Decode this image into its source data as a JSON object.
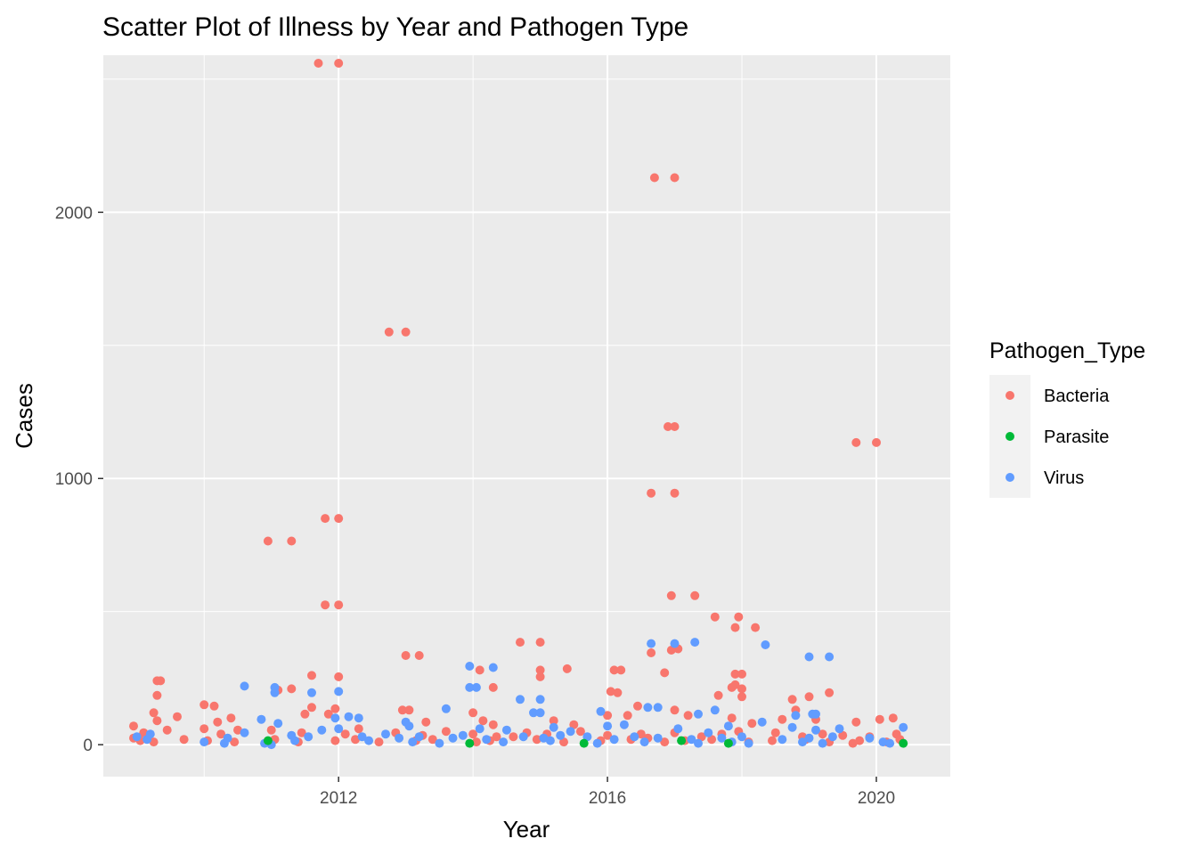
{
  "chart_data": {
    "type": "scatter",
    "title": "Scatter Plot of Illness by Year and Pathogen Type",
    "xlabel": "Year",
    "ylabel": "Cases",
    "xlim": [
      2008.5,
      2021.1
    ],
    "ylim": [
      -120,
      2590
    ],
    "x_ticks": [
      2012,
      2016,
      2020
    ],
    "y_ticks": [
      0,
      1000,
      2000
    ],
    "grid": true,
    "legend": {
      "title": "Pathogen_Type",
      "placement": "right"
    },
    "colors": {
      "Bacteria": "#F8766D",
      "Parasite": "#00BA38",
      "Virus": "#619CFF"
    },
    "panel_background": "#EBEBEB",
    "series": [
      {
        "name": "Bacteria",
        "points": [
          [
            2011.7,
            2560
          ],
          [
            2012.0,
            2560
          ],
          [
            2016.7,
            2130
          ],
          [
            2017.0,
            2130
          ],
          [
            2012.75,
            1550
          ],
          [
            2013.0,
            1550
          ],
          [
            2016.9,
            1195
          ],
          [
            2017.0,
            1195
          ],
          [
            2019.7,
            1135
          ],
          [
            2020.0,
            1135
          ],
          [
            2016.65,
            945
          ],
          [
            2017.0,
            945
          ],
          [
            2011.8,
            850
          ],
          [
            2012.0,
            850
          ],
          [
            2010.95,
            765
          ],
          [
            2011.3,
            765
          ],
          [
            2016.95,
            560
          ],
          [
            2017.3,
            560
          ],
          [
            2011.8,
            525
          ],
          [
            2012.0,
            525
          ],
          [
            2017.6,
            480
          ],
          [
            2017.95,
            480
          ],
          [
            2018.2,
            440
          ],
          [
            2017.9,
            440
          ],
          [
            2014.7,
            385
          ],
          [
            2015.0,
            385
          ],
          [
            2016.65,
            345
          ],
          [
            2016.95,
            355
          ],
          [
            2017.05,
            360
          ],
          [
            2013.0,
            335
          ],
          [
            2013.2,
            335
          ],
          [
            2014.1,
            280
          ],
          [
            2015.0,
            280
          ],
          [
            2015.4,
            285
          ],
          [
            2016.1,
            280
          ],
          [
            2016.2,
            280
          ],
          [
            2015.0,
            255
          ],
          [
            2016.85,
            270
          ],
          [
            2018.0,
            265
          ],
          [
            2017.9,
            265
          ],
          [
            2011.6,
            260
          ],
          [
            2012.0,
            255
          ],
          [
            2009.3,
            240
          ],
          [
            2009.35,
            240
          ],
          [
            2017.9,
            225
          ],
          [
            2017.85,
            215
          ],
          [
            2018.0,
            210
          ],
          [
            2014.3,
            215
          ],
          [
            2016.05,
            200
          ],
          [
            2016.15,
            195
          ],
          [
            2019.3,
            195
          ],
          [
            2011.1,
            205
          ],
          [
            2011.3,
            210
          ],
          [
            2009.3,
            185
          ],
          [
            2017.65,
            185
          ],
          [
            2018.0,
            180
          ],
          [
            2019.0,
            180
          ],
          [
            2018.75,
            170
          ],
          [
            2011.6,
            140
          ],
          [
            2011.95,
            135
          ],
          [
            2010.0,
            150
          ],
          [
            2010.15,
            145
          ],
          [
            2012.95,
            130
          ],
          [
            2013.05,
            130
          ],
          [
            2018.8,
            130
          ],
          [
            2016.45,
            145
          ],
          [
            2017.0,
            130
          ],
          [
            2009.25,
            120
          ],
          [
            2009.3,
            90
          ],
          [
            2009.6,
            105
          ],
          [
            2010.2,
            85
          ],
          [
            2010.4,
            100
          ],
          [
            2011.5,
            115
          ],
          [
            2011.85,
            115
          ],
          [
            2013.3,
            85
          ],
          [
            2014.0,
            120
          ],
          [
            2014.15,
            90
          ],
          [
            2014.3,
            75
          ],
          [
            2015.2,
            90
          ],
          [
            2015.5,
            75
          ],
          [
            2016.0,
            110
          ],
          [
            2016.3,
            110
          ],
          [
            2017.2,
            110
          ],
          [
            2017.85,
            100
          ],
          [
            2018.15,
            80
          ],
          [
            2018.6,
            95
          ],
          [
            2019.1,
            95
          ],
          [
            2019.7,
            85
          ],
          [
            2020.05,
            95
          ],
          [
            2020.25,
            100
          ],
          [
            2008.95,
            70
          ],
          [
            2009.1,
            45
          ],
          [
            2009.45,
            55
          ],
          [
            2010.0,
            60
          ],
          [
            2010.25,
            40
          ],
          [
            2010.5,
            55
          ],
          [
            2011.0,
            55
          ],
          [
            2011.45,
            45
          ],
          [
            2012.1,
            40
          ],
          [
            2012.3,
            60
          ],
          [
            2012.85,
            45
          ],
          [
            2013.25,
            35
          ],
          [
            2013.6,
            50
          ],
          [
            2014.0,
            40
          ],
          [
            2014.35,
            30
          ],
          [
            2014.8,
            45
          ],
          [
            2015.1,
            40
          ],
          [
            2015.6,
            50
          ],
          [
            2016.0,
            35
          ],
          [
            2016.5,
            40
          ],
          [
            2017.0,
            45
          ],
          [
            2017.4,
            30
          ],
          [
            2017.7,
            40
          ],
          [
            2017.95,
            50
          ],
          [
            2018.5,
            45
          ],
          [
            2018.9,
            30
          ],
          [
            2019.2,
            40
          ],
          [
            2019.5,
            35
          ],
          [
            2019.9,
            30
          ],
          [
            2020.3,
            40
          ],
          [
            2008.95,
            25
          ],
          [
            2009.05,
            15
          ],
          [
            2009.25,
            10
          ],
          [
            2009.7,
            20
          ],
          [
            2010.05,
            15
          ],
          [
            2010.45,
            10
          ],
          [
            2011.05,
            20
          ],
          [
            2011.4,
            10
          ],
          [
            2011.95,
            15
          ],
          [
            2012.25,
            20
          ],
          [
            2012.6,
            10
          ],
          [
            2013.15,
            15
          ],
          [
            2013.4,
            20
          ],
          [
            2014.05,
            10
          ],
          [
            2014.25,
            15
          ],
          [
            2014.95,
            20
          ],
          [
            2015.35,
            10
          ],
          [
            2015.9,
            15
          ],
          [
            2016.35,
            20
          ],
          [
            2016.85,
            10
          ],
          [
            2017.15,
            15
          ],
          [
            2017.55,
            20
          ],
          [
            2018.1,
            10
          ],
          [
            2018.45,
            15
          ],
          [
            2018.95,
            20
          ],
          [
            2019.3,
            10
          ],
          [
            2019.75,
            15
          ],
          [
            2020.15,
            10
          ],
          [
            2020.35,
            20
          ],
          [
            2019.65,
            5
          ],
          [
            2016.6,
            25
          ],
          [
            2014.6,
            30
          ]
        ]
      },
      {
        "name": "Virus",
        "points": [
          [
            2017.3,
            385
          ],
          [
            2016.65,
            380
          ],
          [
            2017.0,
            380
          ],
          [
            2018.35,
            375
          ],
          [
            2019.0,
            330
          ],
          [
            2019.3,
            330
          ],
          [
            2013.95,
            295
          ],
          [
            2014.3,
            290
          ],
          [
            2010.6,
            220
          ],
          [
            2011.05,
            215
          ],
          [
            2011.05,
            195
          ],
          [
            2011.6,
            195
          ],
          [
            2012.0,
            200
          ],
          [
            2013.95,
            215
          ],
          [
            2014.05,
            215
          ],
          [
            2014.7,
            170
          ],
          [
            2015.0,
            170
          ],
          [
            2016.6,
            140
          ],
          [
            2016.75,
            140
          ],
          [
            2013.6,
            135
          ],
          [
            2015.9,
            125
          ],
          [
            2017.6,
            130
          ],
          [
            2014.9,
            120
          ],
          [
            2015.0,
            120
          ],
          [
            2019.05,
            115
          ],
          [
            2019.1,
            115
          ],
          [
            2017.35,
            115
          ],
          [
            2018.8,
            110
          ],
          [
            2012.15,
            105
          ],
          [
            2012.3,
            100
          ],
          [
            2011.95,
            100
          ],
          [
            2011.75,
            55
          ],
          [
            2012.0,
            60
          ],
          [
            2010.85,
            95
          ],
          [
            2011.1,
            80
          ],
          [
            2013.0,
            85
          ],
          [
            2013.05,
            70
          ],
          [
            2014.1,
            60
          ],
          [
            2014.5,
            55
          ],
          [
            2015.2,
            65
          ],
          [
            2015.45,
            50
          ],
          [
            2016.0,
            70
          ],
          [
            2016.25,
            75
          ],
          [
            2017.05,
            60
          ],
          [
            2017.8,
            70
          ],
          [
            2018.3,
            85
          ],
          [
            2018.75,
            65
          ],
          [
            2019.1,
            55
          ],
          [
            2019.45,
            60
          ],
          [
            2020.4,
            65
          ],
          [
            2009.2,
            40
          ],
          [
            2009.0,
            30
          ],
          [
            2010.6,
            45
          ],
          [
            2010.35,
            25
          ],
          [
            2011.3,
            35
          ],
          [
            2011.55,
            30
          ],
          [
            2012.35,
            30
          ],
          [
            2012.9,
            25
          ],
          [
            2013.2,
            30
          ],
          [
            2013.7,
            25
          ],
          [
            2013.85,
            35
          ],
          [
            2014.2,
            20
          ],
          [
            2014.75,
            30
          ],
          [
            2015.05,
            25
          ],
          [
            2015.7,
            30
          ],
          [
            2016.1,
            20
          ],
          [
            2016.4,
            30
          ],
          [
            2016.75,
            25
          ],
          [
            2017.25,
            20
          ],
          [
            2017.7,
            25
          ],
          [
            2018.0,
            30
          ],
          [
            2018.6,
            20
          ],
          [
            2019.0,
            25
          ],
          [
            2019.35,
            30
          ],
          [
            2019.9,
            25
          ],
          [
            2010.0,
            10
          ],
          [
            2010.3,
            5
          ],
          [
            2010.9,
            5
          ],
          [
            2011.0,
            0
          ],
          [
            2011.35,
            15
          ],
          [
            2012.45,
            15
          ],
          [
            2013.1,
            10
          ],
          [
            2013.5,
            5
          ],
          [
            2014.45,
            10
          ],
          [
            2015.15,
            15
          ],
          [
            2015.85,
            5
          ],
          [
            2016.55,
            10
          ],
          [
            2017.35,
            5
          ],
          [
            2017.85,
            10
          ],
          [
            2018.1,
            5
          ],
          [
            2018.9,
            10
          ],
          [
            2019.2,
            5
          ],
          [
            2020.1,
            10
          ],
          [
            2020.2,
            5
          ],
          [
            2009.15,
            20
          ],
          [
            2012.7,
            40
          ],
          [
            2015.3,
            35
          ],
          [
            2017.5,
            45
          ]
        ]
      },
      {
        "name": "Parasite",
        "points": [
          [
            2010.95,
            15
          ],
          [
            2013.95,
            5
          ],
          [
            2015.65,
            5
          ],
          [
            2017.1,
            15
          ],
          [
            2017.8,
            5
          ],
          [
            2020.4,
            5
          ]
        ]
      }
    ]
  }
}
